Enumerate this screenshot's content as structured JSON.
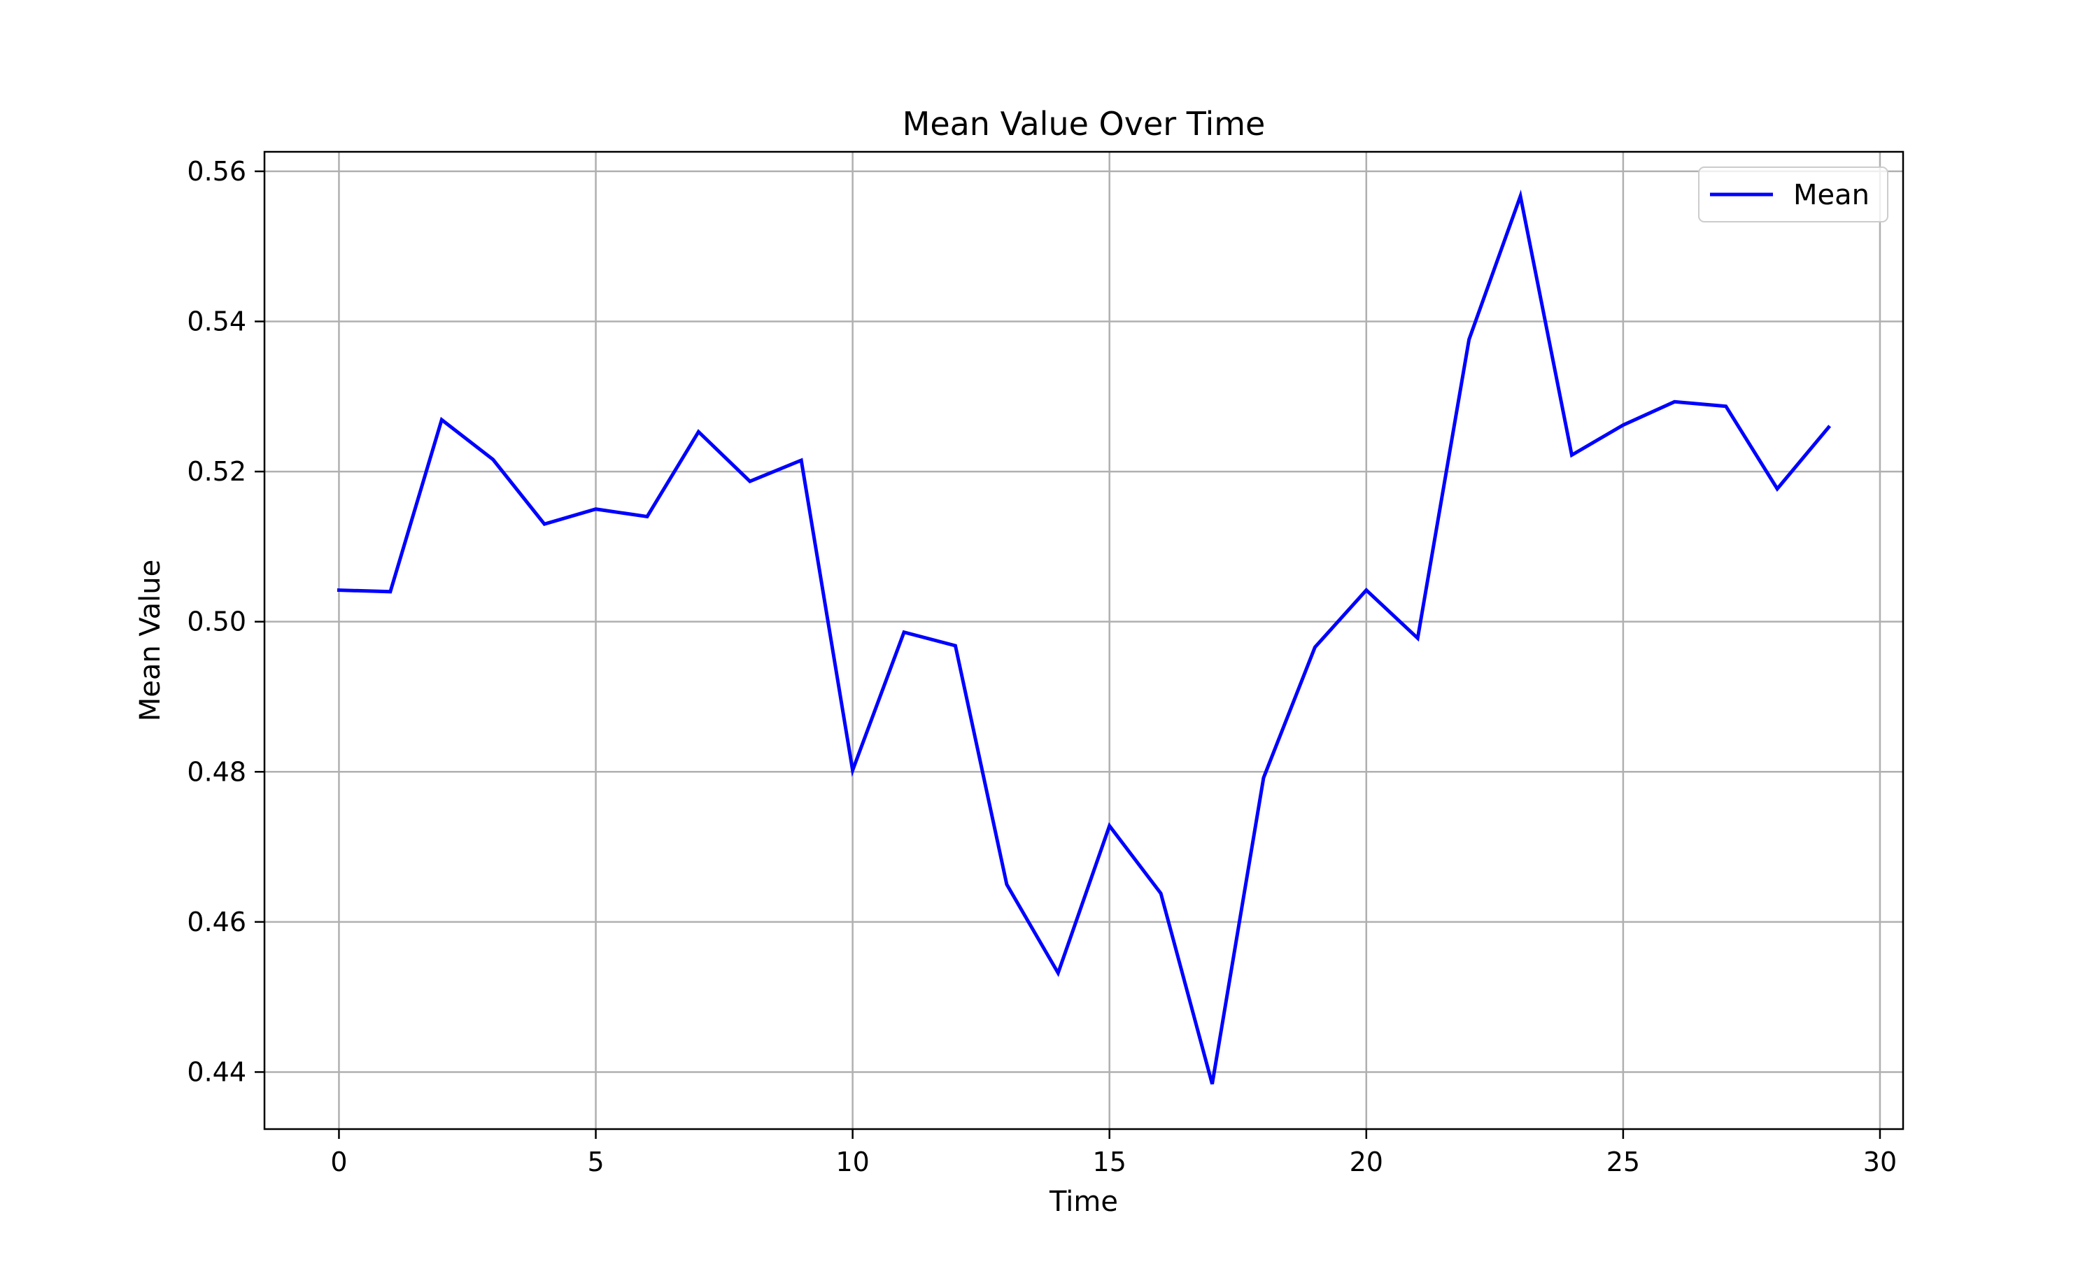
{
  "chart_data": {
    "type": "line",
    "title": "Mean Value Over Time",
    "xlabel": "Time",
    "ylabel": "Mean Value",
    "xlim": [
      -1.45,
      30.45
    ],
    "ylim": [
      0.4324,
      0.5626
    ],
    "xticks": [
      0,
      5,
      10,
      15,
      20,
      25,
      30
    ],
    "xtick_labels": [
      "0",
      "5",
      "10",
      "15",
      "20",
      "25",
      "30"
    ],
    "yticks": [
      0.44,
      0.46,
      0.48,
      0.5,
      0.52,
      0.54,
      0.56
    ],
    "ytick_labels": [
      "0.44",
      "0.46",
      "0.48",
      "0.50",
      "0.52",
      "0.54",
      "0.56"
    ],
    "grid": true,
    "legend_position": "top-right",
    "series": [
      {
        "name": "Mean",
        "color": "#0000ff",
        "x": [
          0,
          1,
          2,
          3,
          4,
          5,
          6,
          7,
          8,
          9,
          10,
          11,
          12,
          13,
          14,
          15,
          16,
          17,
          18,
          19,
          20,
          21,
          22,
          23,
          24,
          25,
          26,
          27,
          28,
          29
        ],
        "y": [
          0.5042,
          0.504,
          0.5269,
          0.5216,
          0.513,
          0.515,
          0.514,
          0.5253,
          0.5187,
          0.5215,
          0.4802,
          0.4986,
          0.4968,
          0.465,
          0.4532,
          0.4728,
          0.4638,
          0.4384,
          0.4792,
          0.4966,
          0.5042,
          0.4978,
          0.5376,
          0.5567,
          0.5222,
          0.5262,
          0.5293,
          0.5287,
          0.5177,
          0.5259
        ]
      }
    ]
  }
}
